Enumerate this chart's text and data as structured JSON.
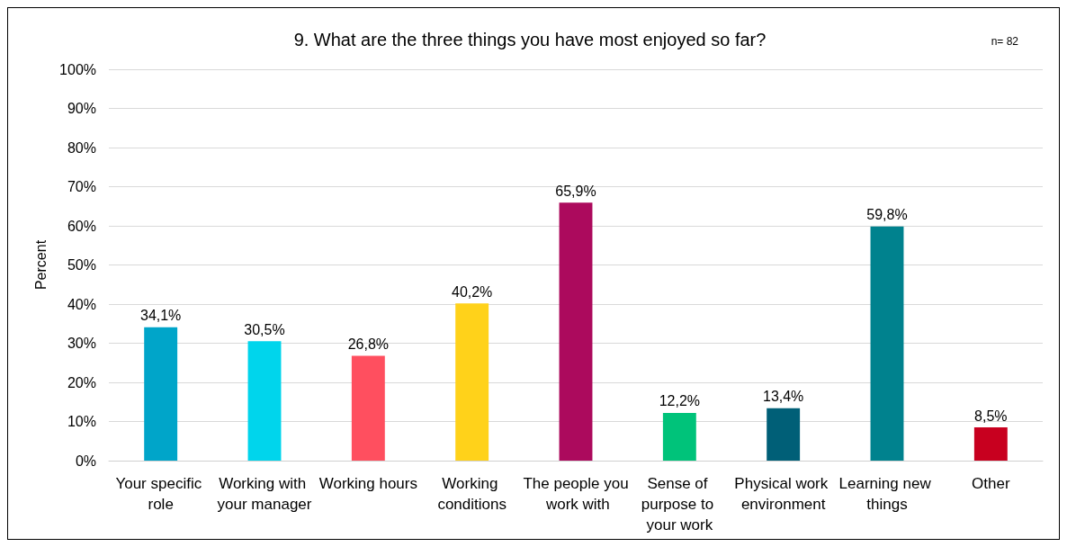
{
  "chart_data": {
    "type": "bar",
    "title": "9. What are the three things you have most enjoyed so far?",
    "ylabel": "Percent",
    "annotations": [
      "n= 82"
    ],
    "categories": [
      "Your specific role",
      "Working with your manager",
      "Working hours",
      "Working conditions",
      "The people you work with",
      "Sense of purpose to your work",
      "Physical work environment",
      "Learning new things",
      "Other"
    ],
    "values": [
      34.1,
      30.5,
      26.8,
      40.2,
      65.9,
      12.2,
      13.4,
      59.8,
      8.5
    ],
    "colors": [
      "#00a5c9",
      "#00d5ec",
      "#ff4f5f",
      "#ffd21a",
      "#ac0a5d",
      "#00c37a",
      "#005f77",
      "#00828e",
      "#c8001f"
    ],
    "value_labels": [
      "34,1%",
      "30,5%",
      "26,8%",
      "40,2%",
      "65,9%",
      "12,2%",
      "13,4%",
      "59,8%",
      "8,5%"
    ],
    "ylim": [
      0,
      100
    ],
    "yticks": [
      {
        "value": 0,
        "label": "0%"
      },
      {
        "value": 10,
        "label": "10%"
      },
      {
        "value": 20,
        "label": "20%"
      },
      {
        "value": 30,
        "label": "30%"
      },
      {
        "value": 40,
        "label": "40%"
      },
      {
        "value": 50,
        "label": "50%"
      },
      {
        "value": 60,
        "label": "60%"
      },
      {
        "value": 70,
        "label": "70%"
      },
      {
        "value": 80,
        "label": "80%"
      },
      {
        "value": 90,
        "label": "90%"
      },
      {
        "value": 100,
        "label": "100%"
      }
    ],
    "grid": "y"
  }
}
